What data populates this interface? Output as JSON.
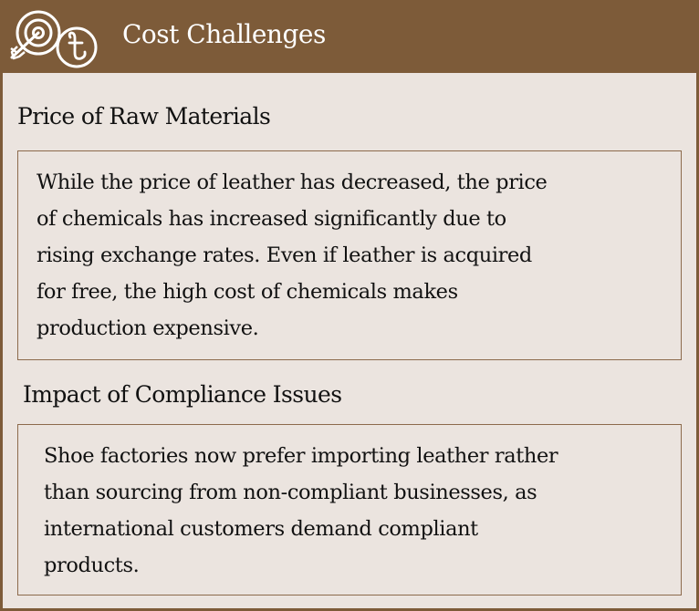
{
  "header": {
    "title": "Cost Challenges",
    "icon": "target-arrow-taka-icon"
  },
  "sections": [
    {
      "heading": "Price of Raw Materials",
      "lines": [
        "While the price of leather has decreased, the price",
        "of chemicals has increased significantly due to",
        "rising exchange rates. Even if leather is acquired",
        "for free, the high cost of chemicals makes",
        "production expensive."
      ]
    },
    {
      "heading": "Impact of Compliance Issues",
      "lines": [
        "Shoe factories now prefer importing leather rather",
        "than sourcing from non-compliant businesses, as",
        "international customers demand compliant",
        "products."
      ]
    }
  ],
  "colors": {
    "header_bg": "#7d5b39",
    "panel_bg": "#ebe4df",
    "border": "#8c6a4c",
    "text": "#111111",
    "header_text": "#ffffff"
  }
}
